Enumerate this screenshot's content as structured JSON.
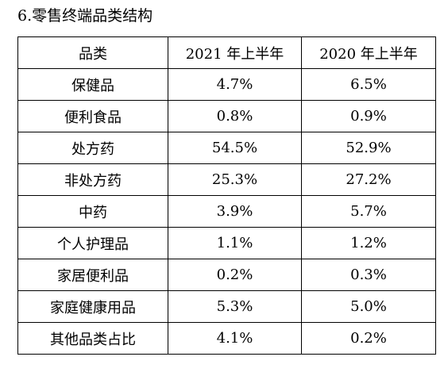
{
  "document": {
    "heading": "6.零售终端品类结构",
    "table": {
      "headers": [
        "品类",
        "2021 年上半年",
        "2020 年上半年"
      ],
      "rows": [
        {
          "category": "保健品",
          "h1_2021": "4.7%",
          "h1_2020": "6.5%"
        },
        {
          "category": "便利食品",
          "h1_2021": "0.8%",
          "h1_2020": "0.9%"
        },
        {
          "category": "处方药",
          "h1_2021": "54.5%",
          "h1_2020": "52.9%"
        },
        {
          "category": "非处方药",
          "h1_2021": "25.3%",
          "h1_2020": "27.2%"
        },
        {
          "category": "中药",
          "h1_2021": "3.9%",
          "h1_2020": "5.7%"
        },
        {
          "category": "个人护理品",
          "h1_2021": "1.1%",
          "h1_2020": "1.2%"
        },
        {
          "category": "家居便利品",
          "h1_2021": "0.2%",
          "h1_2020": "0.3%"
        },
        {
          "category": "家庭健康用品",
          "h1_2021": "5.3%",
          "h1_2020": "5.0%"
        },
        {
          "category": "其他品类占比",
          "h1_2021": "4.1%",
          "h1_2020": "0.2%"
        }
      ]
    }
  }
}
